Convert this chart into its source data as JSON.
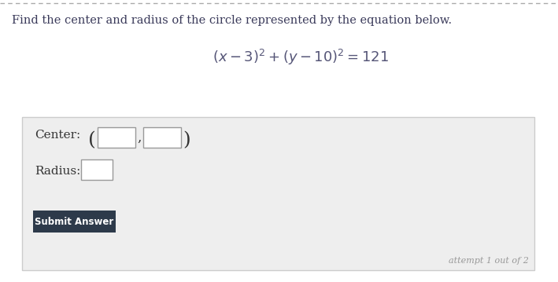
{
  "title_text": "Find the center and radius of the circle represented by the equation below.",
  "center_label": "Center:",
  "radius_label": "Radius:",
  "submit_text": "Submit Answer",
  "attempt_text": "attempt 1 out of 2",
  "bg_color": "#eeeeee",
  "page_bg": "#ffffff",
  "box_color": "#ffffff",
  "box_border": "#aaaaaa",
  "panel_border": "#cccccc",
  "submit_bg": "#2d3a4a",
  "submit_text_color": "#ffffff",
  "title_color": "#3a3a5a",
  "equation_color": "#555577",
  "label_color": "#333333",
  "attempt_color": "#999999",
  "top_border_color": "#aaaaaa",
  "title_fontsize": 10.5,
  "eq_fontsize": 13,
  "label_fontsize": 11
}
